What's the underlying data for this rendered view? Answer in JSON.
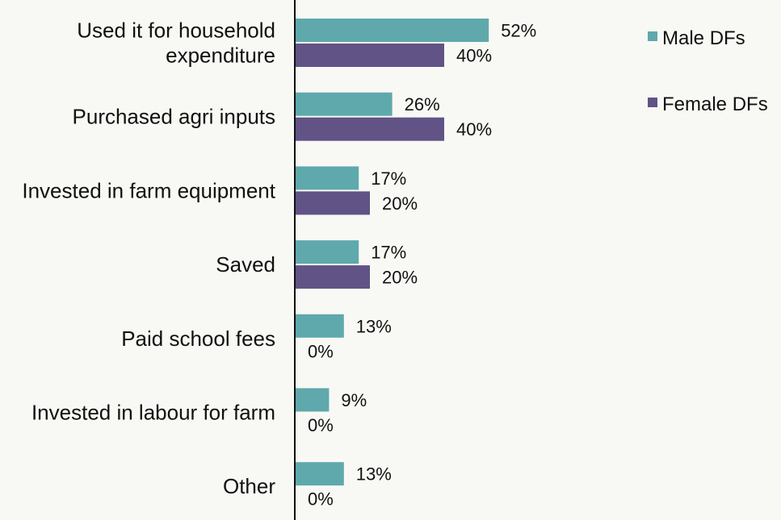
{
  "chart_data": {
    "type": "bar",
    "orientation": "horizontal",
    "categories": [
      [
        "Used it for household",
        "expenditure"
      ],
      [
        "Purchased agri inputs"
      ],
      [
        "Invested in farm equipment"
      ],
      [
        "Saved"
      ],
      [
        "Paid school fees"
      ],
      [
        "Invested in labour for farm"
      ],
      [
        "Other"
      ]
    ],
    "series": [
      {
        "name": "Male DFs",
        "color": "#5fa8ab",
        "values": [
          52,
          26,
          17,
          17,
          13,
          9,
          13
        ],
        "labels": [
          "52%",
          "26%",
          "17%",
          "17%",
          "13%",
          "9%",
          "13%"
        ]
      },
      {
        "name": "Female DFs",
        "color": "#625387",
        "values": [
          40,
          40,
          20,
          20,
          0,
          0,
          0
        ],
        "labels": [
          "40%",
          "40%",
          "20%",
          "20%",
          "0%",
          "0%",
          "0%"
        ]
      }
    ],
    "xlim": [
      0,
      100
    ],
    "grid": false,
    "legend_position": "top-right"
  }
}
